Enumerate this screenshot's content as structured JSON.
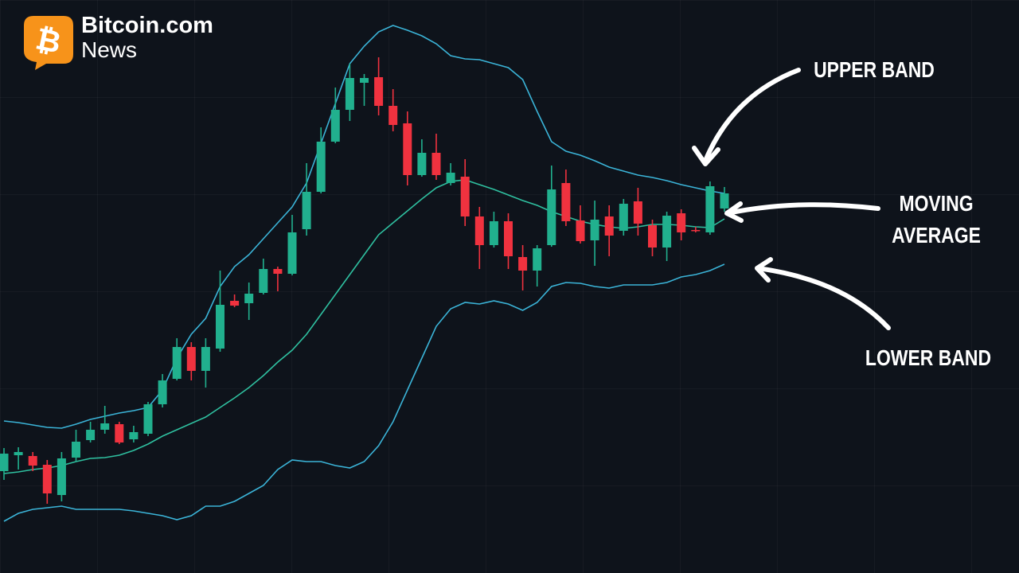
{
  "logo": {
    "symbol": "₿",
    "name": "Bitcoin.com",
    "sub": "News"
  },
  "chart_data": {
    "type": "candlestick",
    "ylim": [
      0,
      720
    ],
    "up_color": "#21b08e",
    "down_color": "#f0323f",
    "ohlc": {
      "open": [
        128,
        148,
        147,
        136,
        98,
        145,
        167,
        180,
        187,
        168,
        175,
        212,
        244,
        284,
        254,
        282,
        342,
        339,
        352,
        382,
        376,
        432,
        479,
        542,
        582,
        616,
        623,
        587,
        565,
        500,
        528,
        490,
        498,
        448,
        412,
        442,
        397,
        380,
        412,
        490,
        443,
        418,
        448,
        430,
        467,
        437,
        409,
        452,
        431,
        428,
        458
      ],
      "high": [
        157,
        158,
        152,
        142,
        152,
        180,
        190,
        210,
        190,
        185,
        215,
        250,
        295,
        290,
        295,
        380,
        350,
        365,
        395,
        385,
        450,
        515,
        560,
        610,
        640,
        627,
        648,
        608,
        580,
        545,
        552,
        515,
        520,
        460,
        454,
        452,
        412,
        412,
        512,
        507,
        462,
        468,
        462,
        470,
        484,
        444,
        454,
        457,
        435,
        492,
        485
      ],
      "low": [
        117,
        130,
        128,
        87,
        90,
        140,
        164,
        175,
        162,
        164,
        172,
        208,
        242,
        242,
        233,
        278,
        334,
        318,
        350,
        354,
        374,
        424,
        477,
        540,
        568,
        587,
        575,
        555,
        487,
        498,
        494,
        487,
        436,
        382,
        409,
        382,
        355,
        360,
        410,
        436,
        414,
        386,
        398,
        424,
        424,
        398,
        392,
        418,
        428,
        425,
        454
      ],
      "close": [
        150,
        152,
        135,
        100,
        144,
        165,
        180,
        188,
        164,
        177,
        212,
        242,
        284,
        254,
        284,
        337,
        336,
        351,
        382,
        376,
        428,
        479,
        542,
        582,
        622,
        622,
        587,
        563,
        500,
        528,
        500,
        503,
        448,
        412,
        442,
        398,
        380,
        408,
        482,
        442,
        417,
        444,
        424,
        464,
        439,
        409,
        449,
        428,
        430,
        486,
        477
      ]
    },
    "series": [
      {
        "color": "#3bb4d8",
        "values": [
          191,
          189,
          186,
          183,
          182,
          187,
          193,
          197,
          201,
          204,
          208,
          230,
          270,
          300,
          320,
          360,
          385,
          400,
          420,
          440,
          460,
          490,
          540,
          590,
          640,
          662,
          680,
          688,
          682,
          675,
          665,
          650,
          646,
          645,
          640,
          635,
          620,
          580,
          542,
          530,
          525,
          518,
          510,
          505,
          500,
          497,
          493,
          488,
          484,
          480,
          477
        ]
      },
      {
        "color": "#2fc0a0",
        "values": [
          125,
          127,
          130,
          132,
          135,
          140,
          144,
          145,
          148,
          154,
          162,
          172,
          180,
          188,
          196,
          208,
          220,
          233,
          248,
          265,
          280,
          300,
          325,
          350,
          375,
          400,
          425,
          440,
          455,
          470,
          484,
          492,
          494,
          488,
          482,
          475,
          468,
          462,
          454,
          448,
          442,
          438,
          435,
          433,
          435,
          438,
          438,
          437,
          435,
          434,
          445
        ]
      },
      {
        "color": "#3bb4d8",
        "values": [
          65,
          75,
          80,
          82,
          84,
          80,
          80,
          80,
          80,
          78,
          75,
          72,
          67,
          72,
          84,
          84,
          90,
          100,
          110,
          130,
          142,
          140,
          140,
          135,
          132,
          140,
          160,
          190,
          230,
          270,
          310,
          332,
          340,
          338,
          342,
          338,
          330,
          340,
          360,
          365,
          364,
          360,
          358,
          362,
          362,
          362,
          365,
          372,
          375,
          380,
          388
        ]
      }
    ],
    "annotations": [
      "UPPER BAND",
      "MOVING AVERAGE",
      "LOWER BAND"
    ]
  }
}
